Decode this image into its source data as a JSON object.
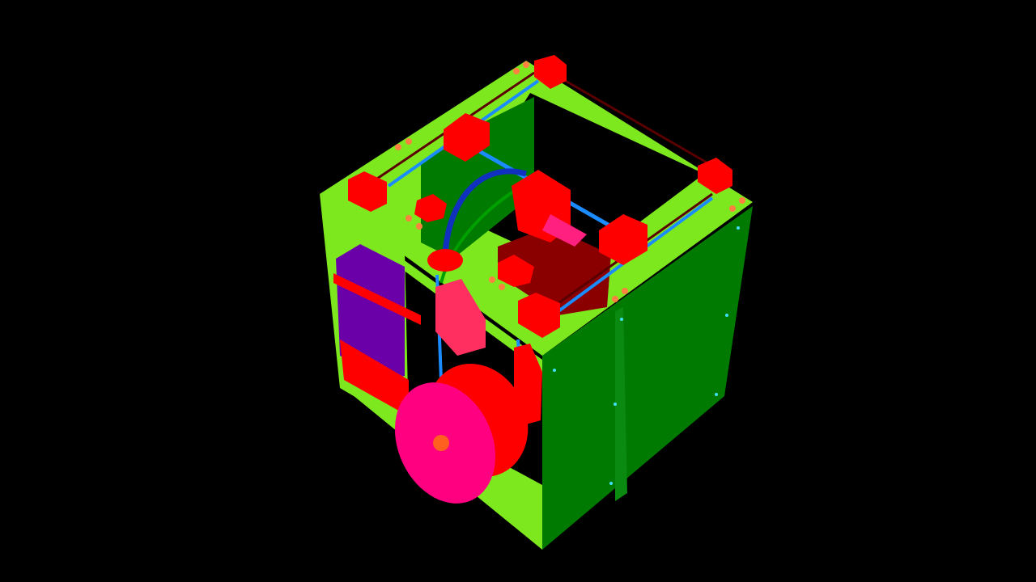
{
  "viewport": {
    "background": "#000000"
  },
  "model": {
    "frame_color": "#7ee81e",
    "side_panel_color": "#007a00",
    "printed_parts_color": "#ff0000",
    "spool_color": "#ff0080",
    "electronics_color": "#6a00a8",
    "rod_color": "#1a8cff",
    "belt_color": "#5a0000",
    "bowden_tube_color": "#1030c0",
    "bed_color": "#8a0000",
    "screw_color": "#ff8040"
  }
}
